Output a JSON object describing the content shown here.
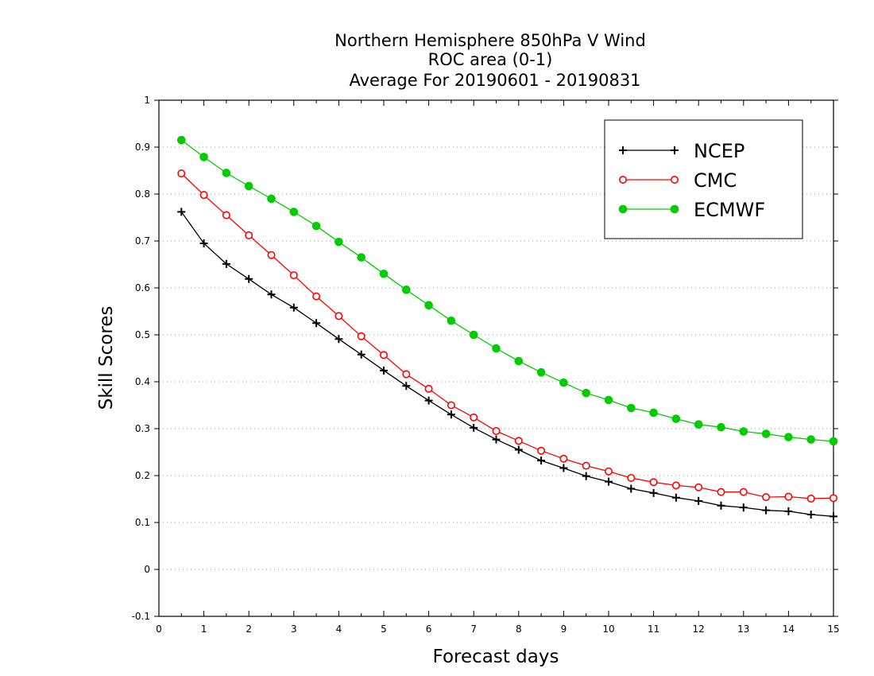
{
  "chart_data": {
    "type": "line",
    "title": [
      "Northern Hemisphere 850hPa V Wind",
      "ROC area (0-1)",
      "Average For 20190601 - 20190831"
    ],
    "xlabel": "Forecast days",
    "ylabel": "Skill Scores",
    "xlim": [
      0,
      15
    ],
    "ylim": [
      -0.1,
      1
    ],
    "x_ticks": [
      0,
      1,
      2,
      3,
      4,
      5,
      6,
      7,
      8,
      9,
      10,
      11,
      12,
      13,
      14,
      15
    ],
    "y_ticks": [
      -0.1,
      0,
      0.1,
      0.2,
      0.3,
      0.4,
      0.5,
      0.6,
      0.7,
      0.8,
      0.9,
      1
    ],
    "y_tick_labels": [
      "-0.1",
      "0",
      "0.1",
      "0.2",
      "0.3",
      "0.4",
      "0.5",
      "0.6",
      "0.7",
      "0.8",
      "0.9",
      "1"
    ],
    "grid": "horizontal dotted",
    "legend_position": "top-right",
    "x": [
      0.5,
      1,
      1.5,
      2,
      2.5,
      3,
      3.5,
      4,
      4.5,
      5,
      5.5,
      6,
      6.5,
      7,
      7.5,
      8,
      8.5,
      9,
      9.5,
      10,
      10.5,
      11,
      11.5,
      12,
      12.5,
      13,
      13.5,
      14,
      14.5,
      15
    ],
    "series": [
      {
        "name": "NCEP",
        "color": "#000000",
        "marker": "plus",
        "values": [
          0.762,
          0.695,
          0.651,
          0.619,
          0.586,
          0.558,
          0.525,
          0.491,
          0.458,
          0.424,
          0.391,
          0.36,
          0.33,
          0.302,
          0.277,
          0.255,
          0.232,
          0.216,
          0.199,
          0.187,
          0.172,
          0.163,
          0.153,
          0.146,
          0.136,
          0.132,
          0.126,
          0.124,
          0.117,
          0.113
        ]
      },
      {
        "name": "CMC",
        "color": "#ff0000",
        "marker": "open-circle",
        "values": [
          0.844,
          0.798,
          0.755,
          0.712,
          0.67,
          0.627,
          0.582,
          0.54,
          0.497,
          0.457,
          0.416,
          0.385,
          0.35,
          0.324,
          0.295,
          0.274,
          0.253,
          0.236,
          0.221,
          0.209,
          0.195,
          0.186,
          0.179,
          0.175,
          0.165,
          0.165,
          0.154,
          0.155,
          0.151,
          0.152
        ]
      },
      {
        "name": "ECMWF",
        "color": "#00cc00",
        "marker": "filled-circle",
        "values": [
          0.915,
          0.879,
          0.845,
          0.817,
          0.79,
          0.762,
          0.732,
          0.698,
          0.665,
          0.63,
          0.596,
          0.563,
          0.53,
          0.5,
          0.471,
          0.444,
          0.42,
          0.398,
          0.376,
          0.361,
          0.344,
          0.334,
          0.321,
          0.309,
          0.303,
          0.294,
          0.289,
          0.282,
          0.277,
          0.273
        ]
      }
    ]
  }
}
